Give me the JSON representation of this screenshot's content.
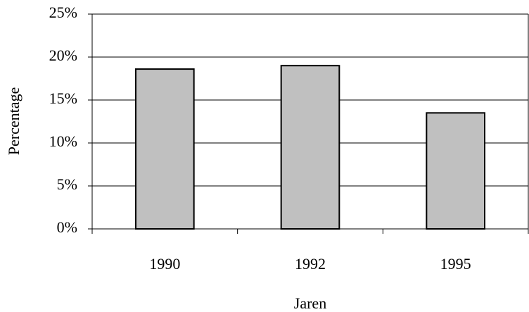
{
  "chart_data": {
    "type": "bar",
    "x_label": "Jaren",
    "y_label": "Percentage",
    "categories": [
      "1990",
      "1992",
      "1995"
    ],
    "values": [
      18.6,
      19.0,
      13.5
    ],
    "color": "#c0c0c0",
    "ylim": [
      0,
      25
    ],
    "yticks": [
      {
        "value": 0,
        "label": "0%"
      },
      {
        "value": 5,
        "label": "5%"
      },
      {
        "value": 10,
        "label": "10%"
      },
      {
        "value": 15,
        "label": "15%"
      },
      {
        "value": 20,
        "label": "20%"
      },
      {
        "value": 25,
        "label": "25%"
      }
    ],
    "grid": true
  }
}
